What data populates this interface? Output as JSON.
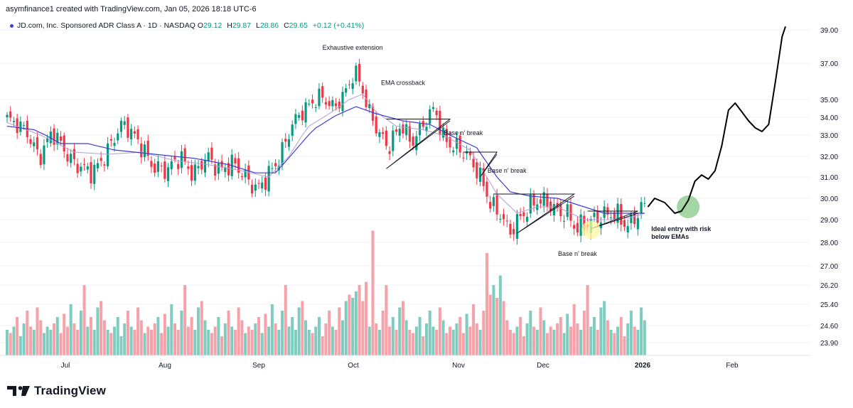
{
  "header": {
    "attribution": "asymfinance1 created with TradingView.com, Jan 05, 2026 18:18 UTC-6"
  },
  "symbol": {
    "name": "JD.com, Inc. Sponsored ADR Class A · 1D · NASDAQ",
    "o_label": "O",
    "o": "29.12",
    "h_label": "H",
    "h": "29.87",
    "l_label": "L",
    "l": "28.86",
    "c_label": "C",
    "c": "29.65",
    "change": "+0.12 (+0.41%)"
  },
  "brand": {
    "name": "TradingView"
  },
  "colors": {
    "up": "#089981",
    "down": "#f23645",
    "vol_up": "#7fccc0",
    "vol_down": "#f7a1a8",
    "ema_fast": "#b39ddb",
    "ema_slow": "#3f3fcf",
    "projection": "#000000",
    "entry_zone": "#7cc47c",
    "highlight": "#fff59d"
  },
  "chart_data": {
    "type": "candlestick",
    "title": "JD.com, Inc. Sponsored ADR Class A · 1D · NASDAQ",
    "y_axis_ticks": [
      "39.00",
      "37.00",
      "35.00",
      "34.00",
      "33.00",
      "32.00",
      "31.00",
      "30.00",
      "29.00",
      "28.00",
      "27.00",
      "26.20",
      "25.40",
      "24.60",
      "23.90"
    ],
    "price_ticks": [
      39.0,
      37.0,
      35.0,
      34.0,
      33.0,
      32.0,
      31.0,
      30.0,
      29.0,
      28.0
    ],
    "x_axis_ticks": [
      "Jul",
      "Aug",
      "Sep",
      "Oct",
      "Nov",
      "Dec",
      "2026",
      "Feb"
    ],
    "price_anchors": [
      [
        0,
        34.0
      ],
      [
        6,
        33.3
      ],
      [
        10,
        31.9
      ],
      [
        14,
        33.2
      ],
      [
        20,
        31.7
      ],
      [
        26,
        31.2
      ],
      [
        30,
        32.1
      ],
      [
        35,
        33.7
      ],
      [
        40,
        32.6
      ],
      [
        44,
        31.5
      ],
      [
        48,
        31.3
      ],
      [
        52,
        32.0
      ],
      [
        56,
        31.1
      ],
      [
        60,
        32.0
      ],
      [
        64,
        31.3
      ],
      [
        68,
        31.7
      ],
      [
        72,
        30.9
      ],
      [
        75,
        30.4
      ],
      [
        78,
        31.0
      ],
      [
        82,
        32.0
      ],
      [
        86,
        33.8
      ],
      [
        90,
        34.6
      ],
      [
        94,
        35.2
      ],
      [
        98,
        34.5
      ],
      [
        102,
        35.6
      ],
      [
        104,
        36.6
      ],
      [
        106,
        35.8
      ],
      [
        108,
        34.5
      ],
      [
        111,
        33.2
      ],
      [
        114,
        32.4
      ],
      [
        118,
        33.6
      ],
      [
        121,
        32.6
      ],
      [
        124,
        33.4
      ],
      [
        128,
        34.6
      ],
      [
        130,
        33.0
      ],
      [
        133,
        32.5
      ],
      [
        137,
        32.2
      ],
      [
        141,
        31.2
      ],
      [
        145,
        29.6
      ],
      [
        148,
        29.2
      ],
      [
        150,
        28.4
      ],
      [
        154,
        29.2
      ],
      [
        158,
        29.9
      ],
      [
        162,
        29.8
      ],
      [
        164,
        29.4
      ],
      [
        168,
        29.2
      ],
      [
        170,
        28.6
      ],
      [
        174,
        28.9
      ],
      [
        178,
        29.2
      ],
      [
        182,
        29.3
      ],
      [
        184,
        28.9
      ],
      [
        186,
        28.7
      ],
      [
        188,
        29.2
      ],
      [
        190,
        29.65
      ]
    ],
    "ema_fast_anchors": [
      [
        0,
        33.7
      ],
      [
        10,
        33.0
      ],
      [
        20,
        32.2
      ],
      [
        30,
        32.1
      ],
      [
        40,
        32.2
      ],
      [
        50,
        31.8
      ],
      [
        60,
        31.6
      ],
      [
        70,
        31.3
      ],
      [
        78,
        31.0
      ],
      [
        84,
        32.0
      ],
      [
        90,
        33.5
      ],
      [
        96,
        34.2
      ],
      [
        102,
        35.0
      ],
      [
        106,
        35.3
      ],
      [
        110,
        34.3
      ],
      [
        116,
        33.5
      ],
      [
        124,
        33.3
      ],
      [
        130,
        33.0
      ],
      [
        138,
        32.3
      ],
      [
        146,
        30.2
      ],
      [
        152,
        29.3
      ],
      [
        158,
        29.6
      ],
      [
        164,
        29.6
      ],
      [
        172,
        29.0
      ],
      [
        180,
        29.0
      ],
      [
        186,
        29.1
      ],
      [
        190,
        29.3
      ]
    ],
    "ema_slow_anchors": [
      [
        0,
        33.5
      ],
      [
        8,
        33.3
      ],
      [
        16,
        32.6
      ],
      [
        24,
        32.6
      ],
      [
        32,
        32.3
      ],
      [
        44,
        32.1
      ],
      [
        56,
        31.9
      ],
      [
        66,
        31.6
      ],
      [
        74,
        31.2
      ],
      [
        80,
        31.2
      ],
      [
        86,
        32.3
      ],
      [
        92,
        33.4
      ],
      [
        98,
        34.1
      ],
      [
        104,
        34.6
      ],
      [
        110,
        34.2
      ],
      [
        118,
        33.8
      ],
      [
        126,
        33.6
      ],
      [
        132,
        33.0
      ],
      [
        140,
        32.4
      ],
      [
        146,
        31.0
      ],
      [
        150,
        30.3
      ],
      [
        156,
        30.1
      ],
      [
        164,
        30.0
      ],
      [
        172,
        29.6
      ],
      [
        178,
        29.3
      ],
      [
        186,
        29.3
      ],
      [
        190,
        29.3
      ]
    ],
    "volume_pattern": [
      24.2,
      24.1,
      24.3,
      24.6,
      24.0,
      24.4,
      24.8,
      24.3,
      24.2,
      24.9,
      24.5,
      24.1,
      24.3,
      24.2,
      24.4,
      24.6,
      24.1,
      24.7,
      24.3,
      25.0,
      24.4,
      24.2,
      24.8,
      25.6,
      24.3,
      24.6,
      24.2,
      24.9,
      25.1,
      24.5
    ],
    "projection_anchors": [
      [
        191,
        29.6
      ],
      [
        193,
        30.0
      ],
      [
        196,
        29.8
      ],
      [
        199,
        29.3
      ],
      [
        201,
        29.4
      ],
      [
        203,
        29.9
      ],
      [
        205,
        30.8
      ],
      [
        207,
        31.1
      ],
      [
        209,
        30.9
      ],
      [
        211,
        31.3
      ],
      [
        213,
        32.5
      ],
      [
        215,
        34.4
      ],
      [
        217,
        34.8
      ],
      [
        219,
        34.3
      ],
      [
        221,
        33.8
      ],
      [
        223,
        33.4
      ],
      [
        225,
        33.2
      ],
      [
        227,
        33.6
      ],
      [
        229,
        36.0
      ],
      [
        231,
        38.6
      ],
      [
        232,
        39.2
      ]
    ],
    "annotations": [
      {
        "text": "Exhaustive extension",
        "bar": 103,
        "price": 37.8
      },
      {
        "text": "EMA crossback",
        "bar": 118,
        "price": 35.8
      },
      {
        "text": "Base n' break",
        "bar": 136,
        "price": 33.0
      },
      {
        "text": "Base n' break",
        "bar": 149,
        "price": 31.2
      },
      {
        "text": "Base n' break",
        "bar": 170,
        "price": 27.4
      },
      {
        "text": "Ideal entry with risk",
        "bar": 192,
        "price": 28.5
      },
      {
        "text": "below EMAs",
        "bar": 192,
        "price": 28.15
      }
    ]
  }
}
